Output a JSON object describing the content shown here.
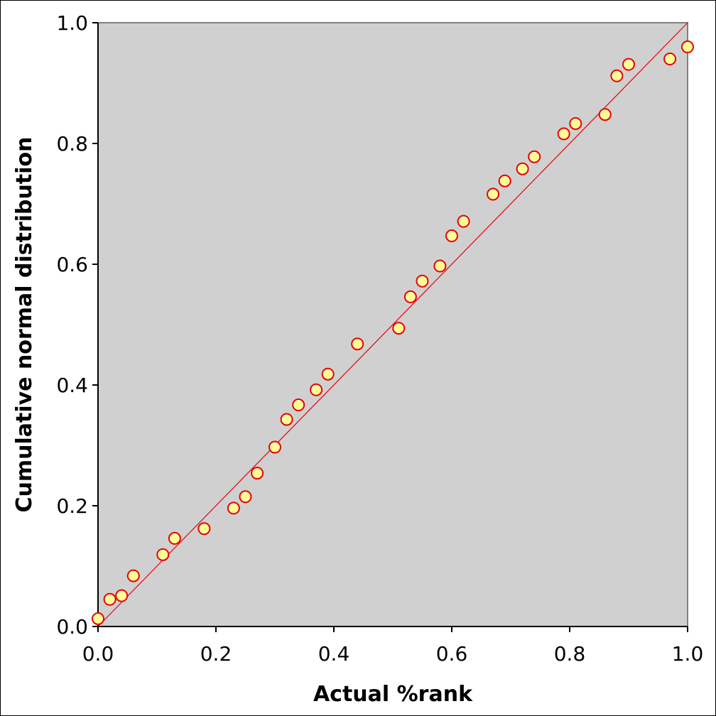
{
  "chart_data": {
    "type": "scatter",
    "title": "",
    "xlabel": "Actual %rank",
    "ylabel": "Cumulative normal distribution",
    "xlim": [
      0,
      1
    ],
    "ylim": [
      0,
      1
    ],
    "x_ticks": [
      "0.0",
      "0.2",
      "0.4",
      "0.6",
      "0.8",
      "1.0"
    ],
    "y_ticks": [
      "0.0",
      "0.2",
      "0.4",
      "0.6",
      "0.8",
      "1.0"
    ],
    "grid": false,
    "legend": "none",
    "plot_background": "#d0d0d0",
    "reference_line": {
      "from": [
        0,
        0
      ],
      "to": [
        1,
        1
      ],
      "color": "#e8000b"
    },
    "marker": {
      "fill": "#ffff99",
      "stroke": "#e8000b",
      "shape": "circle"
    },
    "points": [
      {
        "x": 0.0,
        "y": 0.013
      },
      {
        "x": 0.02,
        "y": 0.045
      },
      {
        "x": 0.04,
        "y": 0.051
      },
      {
        "x": 0.06,
        "y": 0.084
      },
      {
        "x": 0.11,
        "y": 0.119
      },
      {
        "x": 0.13,
        "y": 0.146
      },
      {
        "x": 0.18,
        "y": 0.162
      },
      {
        "x": 0.23,
        "y": 0.196
      },
      {
        "x": 0.25,
        "y": 0.215
      },
      {
        "x": 0.27,
        "y": 0.254
      },
      {
        "x": 0.3,
        "y": 0.297
      },
      {
        "x": 0.32,
        "y": 0.343
      },
      {
        "x": 0.34,
        "y": 0.367
      },
      {
        "x": 0.37,
        "y": 0.392
      },
      {
        "x": 0.39,
        "y": 0.418
      },
      {
        "x": 0.44,
        "y": 0.468
      },
      {
        "x": 0.51,
        "y": 0.494
      },
      {
        "x": 0.53,
        "y": 0.546
      },
      {
        "x": 0.55,
        "y": 0.572
      },
      {
        "x": 0.58,
        "y": 0.597
      },
      {
        "x": 0.6,
        "y": 0.647
      },
      {
        "x": 0.62,
        "y": 0.671
      },
      {
        "x": 0.67,
        "y": 0.716
      },
      {
        "x": 0.69,
        "y": 0.738
      },
      {
        "x": 0.72,
        "y": 0.758
      },
      {
        "x": 0.74,
        "y": 0.778
      },
      {
        "x": 0.79,
        "y": 0.816
      },
      {
        "x": 0.81,
        "y": 0.833
      },
      {
        "x": 0.86,
        "y": 0.848
      },
      {
        "x": 0.88,
        "y": 0.912
      },
      {
        "x": 0.9,
        "y": 0.931
      },
      {
        "x": 0.97,
        "y": 0.94
      },
      {
        "x": 1.0,
        "y": 0.96
      }
    ]
  }
}
